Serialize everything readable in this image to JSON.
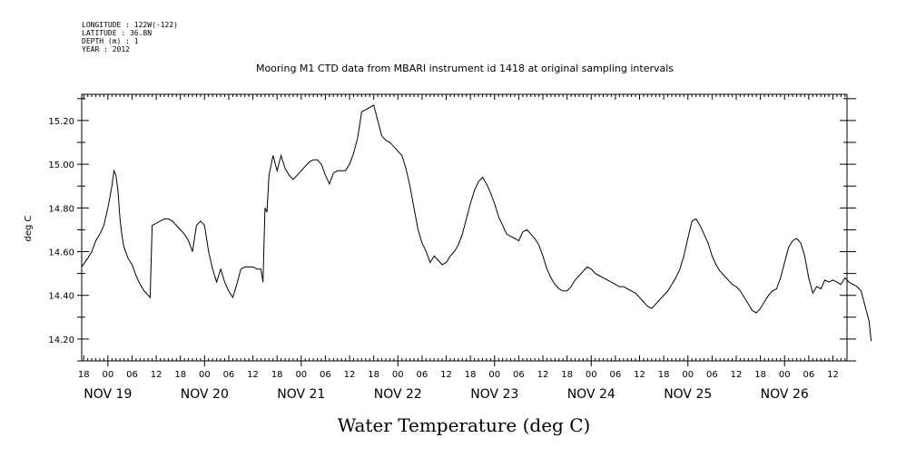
{
  "header": {
    "longitude": "LONGITUDE : 122W(-122)",
    "latitude": "LATITUDE : 36.8N",
    "depth": "DEPTH (m) : 1",
    "year": "YEAR : 2012"
  },
  "chart_data": {
    "type": "line",
    "title": "Mooring M1 CTD data from MBARI instrument id 1418 at original sampling intervals",
    "xlabel": "Water Temperature (deg C)",
    "ylabel": "deg C",
    "ylim": [
      14.1,
      15.32
    ],
    "xlim_hours": [
      -6.5,
      183.5
    ],
    "y_ticks": [
      "14.20",
      "14.40",
      "14.60",
      "14.80",
      "15.00",
      "15.20"
    ],
    "x_hour_labels": [
      "18",
      "00",
      "06",
      "12",
      "18",
      "00",
      "06",
      "12",
      "18",
      "00",
      "06",
      "12",
      "18",
      "00",
      "06",
      "12",
      "18",
      "00",
      "06",
      "12",
      "18",
      "00",
      "06",
      "12",
      "18",
      "00",
      "06",
      "12",
      "18",
      "00",
      "06",
      "12"
    ],
    "x_day_labels": [
      "NOV 19",
      "NOV 20",
      "NOV 21",
      "NOV 22",
      "NOV 23",
      "NOV 24",
      "NOV 25",
      "NOV 26"
    ],
    "x_hours_from": "NOV 19 00",
    "series": [
      {
        "points": [
          [
            -6.5,
            14.53
          ],
          [
            -5,
            14.57
          ],
          [
            -4,
            14.6
          ],
          [
            -3,
            14.65
          ],
          [
            -2,
            14.68
          ],
          [
            -1,
            14.72
          ],
          [
            0,
            14.8
          ],
          [
            0.5,
            14.85
          ],
          [
            1,
            14.9
          ],
          [
            1.5,
            14.97
          ],
          [
            2,
            14.95
          ],
          [
            2.5,
            14.88
          ],
          [
            3,
            14.75
          ],
          [
            3.5,
            14.67
          ],
          [
            4,
            14.62
          ],
          [
            5,
            14.57
          ],
          [
            6,
            14.54
          ],
          [
            7,
            14.49
          ],
          [
            8,
            14.45
          ],
          [
            9,
            14.42
          ],
          [
            10,
            14.4
          ],
          [
            10.5,
            14.39
          ],
          [
            11,
            14.72
          ],
          [
            12,
            14.73
          ],
          [
            13,
            14.74
          ],
          [
            14,
            14.75
          ],
          [
            15,
            14.75
          ],
          [
            16,
            14.74
          ],
          [
            17,
            14.72
          ],
          [
            18,
            14.7
          ],
          [
            19,
            14.68
          ],
          [
            20,
            14.65
          ],
          [
            21,
            14.6
          ],
          [
            21.5,
            14.66
          ],
          [
            22,
            14.72
          ],
          [
            23,
            14.74
          ],
          [
            24,
            14.72
          ],
          [
            25,
            14.6
          ],
          [
            26,
            14.52
          ],
          [
            27,
            14.46
          ],
          [
            28,
            14.52
          ],
          [
            29,
            14.46
          ],
          [
            30,
            14.42
          ],
          [
            31,
            14.39
          ],
          [
            32,
            14.45
          ],
          [
            33,
            14.52
          ],
          [
            34,
            14.53
          ],
          [
            35,
            14.53
          ],
          [
            36,
            14.53
          ],
          [
            37,
            14.52
          ],
          [
            38,
            14.52
          ],
          [
            38.5,
            14.46
          ],
          [
            39,
            14.8
          ],
          [
            39.5,
            14.78
          ],
          [
            40,
            14.95
          ],
          [
            41,
            15.04
          ],
          [
            42,
            14.97
          ],
          [
            43,
            15.04
          ],
          [
            44,
            14.98
          ],
          [
            45,
            14.95
          ],
          [
            46,
            14.93
          ],
          [
            47,
            14.95
          ],
          [
            48,
            14.97
          ],
          [
            49,
            14.99
          ],
          [
            50,
            15.01
          ],
          [
            51,
            15.02
          ],
          [
            52,
            15.02
          ],
          [
            53,
            15.0
          ],
          [
            54,
            14.95
          ],
          [
            55,
            14.91
          ],
          [
            56,
            14.96
          ],
          [
            57,
            14.97
          ],
          [
            58,
            14.97
          ],
          [
            59,
            14.97
          ],
          [
            60,
            15.0
          ],
          [
            61,
            15.05
          ],
          [
            62,
            15.12
          ],
          [
            63,
            15.24
          ],
          [
            64,
            15.25
          ],
          [
            65,
            15.26
          ],
          [
            66,
            15.27
          ],
          [
            67,
            15.2
          ],
          [
            68,
            15.13
          ],
          [
            69,
            15.11
          ],
          [
            70,
            15.1
          ],
          [
            71,
            15.08
          ],
          [
            72,
            15.06
          ],
          [
            73,
            15.04
          ],
          [
            74,
            14.98
          ],
          [
            75,
            14.9
          ],
          [
            76,
            14.8
          ],
          [
            77,
            14.7
          ],
          [
            78,
            14.64
          ],
          [
            79,
            14.6
          ],
          [
            80,
            14.55
          ],
          [
            81,
            14.58
          ],
          [
            82,
            14.56
          ],
          [
            83,
            14.54
          ],
          [
            84,
            14.55
          ],
          [
            85,
            14.58
          ],
          [
            86,
            14.6
          ],
          [
            87,
            14.63
          ],
          [
            88,
            14.68
          ],
          [
            89,
            14.75
          ],
          [
            90,
            14.82
          ],
          [
            91,
            14.88
          ],
          [
            92,
            14.92
          ],
          [
            93,
            14.94
          ],
          [
            94,
            14.91
          ],
          [
            95,
            14.87
          ],
          [
            96,
            14.82
          ],
          [
            97,
            14.76
          ],
          [
            98,
            14.72
          ],
          [
            99,
            14.68
          ],
          [
            100,
            14.67
          ],
          [
            101,
            14.66
          ],
          [
            102,
            14.65
          ],
          [
            103,
            14.69
          ],
          [
            104,
            14.7
          ],
          [
            105,
            14.68
          ],
          [
            106,
            14.66
          ],
          [
            107,
            14.63
          ],
          [
            108,
            14.58
          ],
          [
            109,
            14.52
          ],
          [
            110,
            14.48
          ],
          [
            111,
            14.45
          ],
          [
            112,
            14.43
          ],
          [
            113,
            14.42
          ],
          [
            114,
            14.42
          ],
          [
            115,
            14.44
          ],
          [
            116,
            14.47
          ],
          [
            117,
            14.49
          ],
          [
            118,
            14.51
          ],
          [
            119,
            14.53
          ],
          [
            120,
            14.52
          ],
          [
            121,
            14.5
          ],
          [
            122,
            14.49
          ],
          [
            123,
            14.48
          ],
          [
            124,
            14.47
          ],
          [
            125,
            14.46
          ],
          [
            126,
            14.45
          ],
          [
            127,
            14.44
          ],
          [
            128,
            14.44
          ],
          [
            129,
            14.43
          ],
          [
            130,
            14.42
          ],
          [
            131,
            14.41
          ],
          [
            132,
            14.39
          ],
          [
            133,
            14.37
          ],
          [
            134,
            14.35
          ],
          [
            135,
            14.34
          ],
          [
            136,
            14.36
          ],
          [
            137,
            14.38
          ],
          [
            138,
            14.4
          ],
          [
            139,
            14.42
          ],
          [
            140,
            14.45
          ],
          [
            141,
            14.48
          ],
          [
            142,
            14.52
          ],
          [
            143,
            14.58
          ],
          [
            144,
            14.66
          ],
          [
            145,
            14.74
          ],
          [
            146,
            14.75
          ],
          [
            147,
            14.72
          ],
          [
            148,
            14.68
          ],
          [
            149,
            14.64
          ],
          [
            150,
            14.58
          ],
          [
            151,
            14.54
          ],
          [
            152,
            14.51
          ],
          [
            153,
            14.49
          ],
          [
            154,
            14.47
          ],
          [
            155,
            14.45
          ],
          [
            156,
            14.44
          ],
          [
            157,
            14.42
          ],
          [
            158,
            14.39
          ],
          [
            159,
            14.36
          ],
          [
            160,
            14.33
          ],
          [
            161,
            14.32
          ],
          [
            162,
            14.34
          ],
          [
            163,
            14.37
          ],
          [
            164,
            14.4
          ],
          [
            165,
            14.42
          ],
          [
            166,
            14.43
          ],
          [
            167,
            14.48
          ],
          [
            168,
            14.55
          ],
          [
            169,
            14.62
          ],
          [
            170,
            14.65
          ],
          [
            171,
            14.66
          ],
          [
            172,
            14.64
          ],
          [
            173,
            14.58
          ],
          [
            174,
            14.48
          ],
          [
            175,
            14.41
          ],
          [
            176,
            14.44
          ],
          [
            177,
            14.43
          ],
          [
            178,
            14.47
          ],
          [
            179,
            14.46
          ],
          [
            180,
            14.47
          ],
          [
            181,
            14.46
          ],
          [
            182,
            14.45
          ],
          [
            183,
            14.48
          ],
          [
            184,
            14.46
          ],
          [
            185,
            14.45
          ],
          [
            186,
            14.44
          ],
          [
            187,
            14.42
          ],
          [
            188,
            14.35
          ],
          [
            189,
            14.28
          ],
          [
            189.5,
            14.19
          ]
        ]
      }
    ]
  }
}
